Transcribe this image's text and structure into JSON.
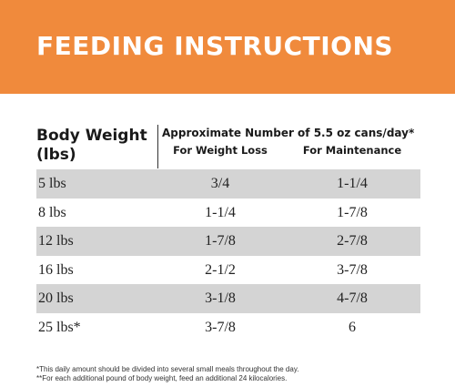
{
  "banner": {
    "title": "FEEDING INSTRUCTIONS",
    "color": "#f08a3c"
  },
  "table": {
    "weight_header_line1": "Body Weight",
    "weight_header_line2": "(lbs)",
    "main_header": "Approximate Number of 5.5 oz cans/day*",
    "loss_header": "For Weight Loss",
    "maint_header": "For Maintenance",
    "rows": [
      {
        "weight": "5 lbs",
        "loss": "3/4",
        "maintenance": "1-1/4"
      },
      {
        "weight": "8 lbs",
        "loss": "1-1/4",
        "maintenance": "1-7/8"
      },
      {
        "weight": "12 lbs",
        "loss": "1-7/8",
        "maintenance": "2-7/8"
      },
      {
        "weight": "16 lbs",
        "loss": "2-1/2",
        "maintenance": "3-7/8"
      },
      {
        "weight": "20 lbs",
        "loss": "3-1/8",
        "maintenance": "4-7/8"
      },
      {
        "weight": "25 lbs*",
        "loss": "3-7/8",
        "maintenance": "6"
      }
    ],
    "shaded_row_color": "#d4d4d4"
  },
  "footnotes": {
    "line1": "*This daily amount should be divided into several small meals throughout the day.",
    "line2": "**For each additional pound of body weight, feed an additional 24 kilocalories."
  }
}
